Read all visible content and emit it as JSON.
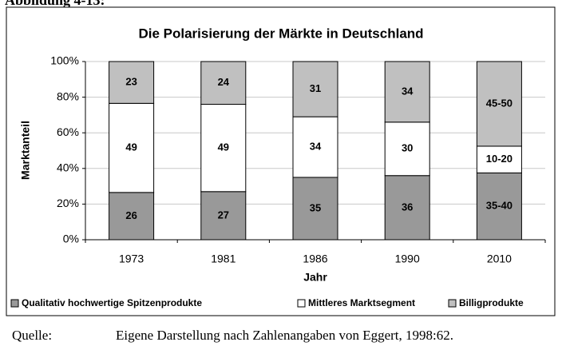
{
  "heading": "Abbildung 4-13:",
  "chart_data": {
    "type": "bar",
    "stacking": "percent",
    "title": "Die Polarisierung der Märkte in Deutschland",
    "x_label": "Jahr",
    "y_label": "Marktanteil",
    "categories": [
      "1973",
      "1981",
      "1986",
      "1990",
      "2010"
    ],
    "series": [
      {
        "name": "Qualitativ hochwertige Spitzenprodukte",
        "color": "#999999",
        "values": [
          26,
          27,
          35,
          36,
          37.5
        ],
        "value_labels": [
          "26",
          "27",
          "35",
          "36",
          "35-40"
        ]
      },
      {
        "name": "Mittleres Marktsegment",
        "color": "#ffffff",
        "values": [
          49,
          49,
          34,
          30,
          15
        ],
        "value_labels": [
          "49",
          "49",
          "34",
          "30",
          "10-20"
        ]
      },
      {
        "name": "Billigprodukte",
        "color": "#c0c0c0",
        "values": [
          23,
          24,
          31,
          34,
          47.5
        ],
        "value_labels": [
          "23",
          "24",
          "31",
          "34",
          "45-50"
        ]
      }
    ],
    "ylim": [
      0,
      100
    ],
    "yticks": [
      {
        "value": 0,
        "label": "0%"
      },
      {
        "value": 20,
        "label": "20%"
      },
      {
        "value": 40,
        "label": "40%"
      },
      {
        "value": 60,
        "label": "60%"
      },
      {
        "value": 80,
        "label": "80%"
      },
      {
        "value": 100,
        "label": "100%"
      }
    ],
    "grid": true,
    "legend": "bottom"
  },
  "caption": {
    "label": "Quelle:",
    "text": "Eigene Darstellung nach Zahlenangaben von Eggert, 1998:62."
  }
}
